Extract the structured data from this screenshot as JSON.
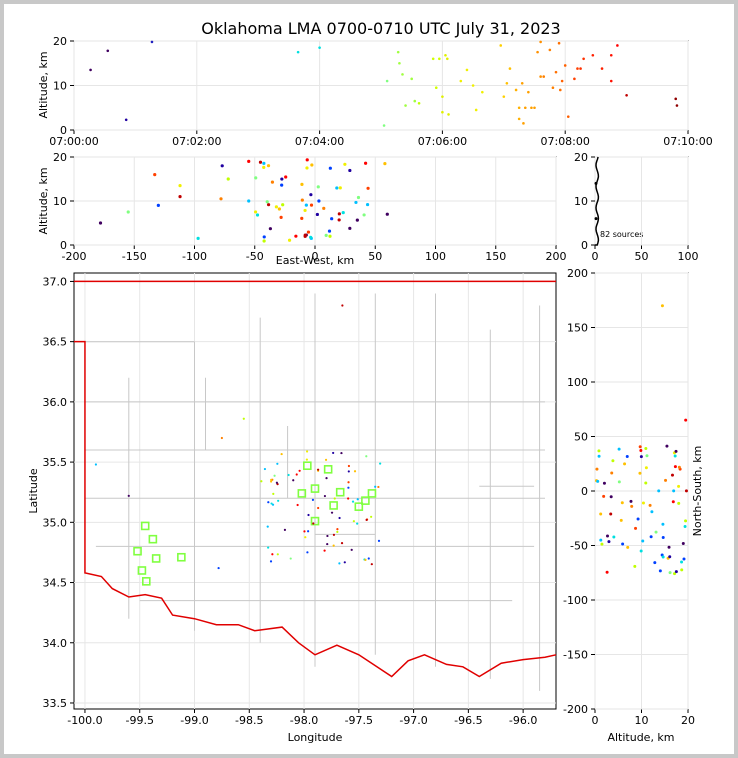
{
  "chart_data": [
    {
      "type": "scatter",
      "title": "Oklahoma LMA 0700-0710 UTC July 31, 2023",
      "ylabel": "Altitude, km",
      "xlim_labels": [
        "07:00:00",
        "07:02:00",
        "07:04:00",
        "07:06:00",
        "07:08:00",
        "07:10:00"
      ],
      "ylim": [
        0,
        20
      ],
      "yticks": [
        0,
        10,
        20
      ],
      "points": [
        {
          "t": 0.27,
          "alt": 13.5,
          "c": "#400060"
        },
        {
          "t": 0.55,
          "alt": 17.8,
          "c": "#400060"
        },
        {
          "t": 0.85,
          "alt": 2.3,
          "c": "#2000a0"
        },
        {
          "t": 1.27,
          "alt": 19.8,
          "c": "#2020c0"
        },
        {
          "t": 3.65,
          "alt": 17.5,
          "c": "#00e0e0"
        },
        {
          "t": 4.0,
          "alt": 18.5,
          "c": "#00e0e0"
        },
        {
          "t": 5.05,
          "alt": 1.0,
          "c": "#80ff80"
        },
        {
          "t": 5.1,
          "alt": 11.0,
          "c": "#80ff80"
        },
        {
          "t": 5.28,
          "alt": 17.5,
          "c": "#a0ff40"
        },
        {
          "t": 5.3,
          "alt": 15.0,
          "c": "#a0ff40"
        },
        {
          "t": 5.35,
          "alt": 12.5,
          "c": "#a0ff40"
        },
        {
          "t": 5.4,
          "alt": 5.5,
          "c": "#a0ff40"
        },
        {
          "t": 5.5,
          "alt": 11.5,
          "c": "#a0ff40"
        },
        {
          "t": 5.55,
          "alt": 6.5,
          "c": "#a0ff40"
        },
        {
          "t": 5.62,
          "alt": 6.0,
          "c": "#c0ff00"
        },
        {
          "t": 5.85,
          "alt": 16.0,
          "c": "#d0ff00"
        },
        {
          "t": 5.9,
          "alt": 9.5,
          "c": "#d0ff00"
        },
        {
          "t": 5.95,
          "alt": 16.0,
          "c": "#d0ff00"
        },
        {
          "t": 6.0,
          "alt": 7.5,
          "c": "#e0f000"
        },
        {
          "t": 6.0,
          "alt": 4.0,
          "c": "#e0f000"
        },
        {
          "t": 6.05,
          "alt": 16.8,
          "c": "#e0f000"
        },
        {
          "t": 6.08,
          "alt": 16.0,
          "c": "#e0f000"
        },
        {
          "t": 6.1,
          "alt": 3.5,
          "c": "#e0f000"
        },
        {
          "t": 6.3,
          "alt": 11.0,
          "c": "#f0f000"
        },
        {
          "t": 6.4,
          "alt": 13.5,
          "c": "#f0f000"
        },
        {
          "t": 6.5,
          "alt": 10.0,
          "c": "#f0f000"
        },
        {
          "t": 6.55,
          "alt": 4.5,
          "c": "#f0f000"
        },
        {
          "t": 6.65,
          "alt": 8.5,
          "c": "#f0f000"
        },
        {
          "t": 6.95,
          "alt": 19.0,
          "c": "#ffd000"
        },
        {
          "t": 7.0,
          "alt": 7.5,
          "c": "#ffd000"
        },
        {
          "t": 7.05,
          "alt": 10.5,
          "c": "#ffc000"
        },
        {
          "t": 7.1,
          "alt": 13.8,
          "c": "#ffc000"
        },
        {
          "t": 7.2,
          "alt": 9.0,
          "c": "#ffb000"
        },
        {
          "t": 7.25,
          "alt": 5.0,
          "c": "#ffb000"
        },
        {
          "t": 7.25,
          "alt": 2.5,
          "c": "#ffb000"
        },
        {
          "t": 7.3,
          "alt": 10.5,
          "c": "#ffa000"
        },
        {
          "t": 7.32,
          "alt": 1.5,
          "c": "#ffa000"
        },
        {
          "t": 7.35,
          "alt": 5.0,
          "c": "#ffa000"
        },
        {
          "t": 7.4,
          "alt": 8.5,
          "c": "#ffa000"
        },
        {
          "t": 7.45,
          "alt": 5.0,
          "c": "#ffa000"
        },
        {
          "t": 7.5,
          "alt": 5.0,
          "c": "#ffa000"
        },
        {
          "t": 7.55,
          "alt": 17.5,
          "c": "#ff9000"
        },
        {
          "t": 7.6,
          "alt": 19.8,
          "c": "#ff9000"
        },
        {
          "t": 7.6,
          "alt": 12.0,
          "c": "#ff9000"
        },
        {
          "t": 7.65,
          "alt": 12.0,
          "c": "#ff8000"
        },
        {
          "t": 7.75,
          "alt": 18.0,
          "c": "#ff8000"
        },
        {
          "t": 7.8,
          "alt": 9.5,
          "c": "#ff8000"
        },
        {
          "t": 7.85,
          "alt": 13.0,
          "c": "#ff7000"
        },
        {
          "t": 7.9,
          "alt": 19.5,
          "c": "#ff7000"
        },
        {
          "t": 7.92,
          "alt": 9.0,
          "c": "#ff7000"
        },
        {
          "t": 7.95,
          "alt": 11.0,
          "c": "#ff6000"
        },
        {
          "t": 8.0,
          "alt": 14.5,
          "c": "#ff6000"
        },
        {
          "t": 8.05,
          "alt": 3.0,
          "c": "#ff6000"
        },
        {
          "t": 8.15,
          "alt": 11.5,
          "c": "#ff4000"
        },
        {
          "t": 8.2,
          "alt": 13.8,
          "c": "#ff4000"
        },
        {
          "t": 8.25,
          "alt": 13.8,
          "c": "#ff3000"
        },
        {
          "t": 8.3,
          "alt": 16.0,
          "c": "#ff3000"
        },
        {
          "t": 8.45,
          "alt": 16.8,
          "c": "#ff2000"
        },
        {
          "t": 8.6,
          "alt": 13.8,
          "c": "#ff2000"
        },
        {
          "t": 8.75,
          "alt": 11.0,
          "c": "#ff1000"
        },
        {
          "t": 8.75,
          "alt": 16.8,
          "c": "#ff1000"
        },
        {
          "t": 8.85,
          "alt": 19.0,
          "c": "#ff0000"
        },
        {
          "t": 9.0,
          "alt": 7.8,
          "c": "#c00000"
        },
        {
          "t": 9.8,
          "alt": 7.0,
          "c": "#900000"
        },
        {
          "t": 9.82,
          "alt": 5.5,
          "c": "#900000"
        }
      ]
    },
    {
      "type": "scatter",
      "xlabel": "East-West, km",
      "ylabel": "Altitude, km",
      "xlim": [
        -200,
        200
      ],
      "xticks": [
        -200,
        -150,
        -100,
        -50,
        0,
        50,
        100,
        150,
        200
      ],
      "ylim": [
        0,
        20
      ],
      "yticks": [
        0,
        10,
        20
      ]
    },
    {
      "type": "histogram",
      "xlim": [
        0,
        100
      ],
      "xticks": [
        0,
        50,
        100
      ],
      "ylim": [
        0,
        20
      ],
      "yticks": [
        0,
        10,
        20
      ],
      "annotation": "82 sources"
    },
    {
      "type": "scatter",
      "xlabel": "Longitude",
      "ylabel": "Latitude",
      "xlim": [
        -100.1,
        -95.7
      ],
      "xticks": [
        -100.0,
        -99.5,
        -99.0,
        -98.5,
        -98.0,
        -97.5,
        -97.0,
        -96.5,
        -96.0
      ],
      "ylim": [
        33.45,
        37.07
      ],
      "yticks": [
        33.5,
        34.0,
        34.5,
        35.0,
        35.5,
        36.0,
        36.5,
        37.0
      ],
      "stations": [
        [
          -99.45,
          34.97
        ],
        [
          -99.38,
          34.86
        ],
        [
          -99.52,
          34.76
        ],
        [
          -99.35,
          34.7
        ],
        [
          -99.12,
          34.71
        ],
        [
          -99.48,
          34.6
        ],
        [
          -99.44,
          34.51
        ],
        [
          -98.02,
          35.24
        ],
        [
          -97.97,
          35.47
        ],
        [
          -97.9,
          35.28
        ],
        [
          -97.9,
          35.01
        ],
        [
          -97.78,
          35.44
        ],
        [
          -97.73,
          35.14
        ],
        [
          -97.67,
          35.25
        ],
        [
          -97.5,
          35.13
        ],
        [
          -97.44,
          35.18
        ],
        [
          -97.38,
          35.24
        ]
      ]
    },
    {
      "type": "scatter",
      "xlabel": "Altitude, km",
      "ylabel": "North-South, km",
      "xlim": [
        0,
        20
      ],
      "xticks": [
        0,
        10,
        20
      ],
      "ylim": [
        -200,
        200
      ],
      "yticks": [
        -200,
        -150,
        -100,
        -50,
        0,
        50,
        100,
        150,
        200
      ]
    }
  ],
  "labels": {
    "title": "Oklahoma LMA 0700-0710 UTC July 31, 2023",
    "ylabel_alt1": "Altitude, km",
    "ylabel_alt2": "Altitude, km",
    "xlabel_ew": "East-West, km",
    "hist_annotation": "82 sources",
    "xlabel_lon": "Longitude",
    "ylabel_lat": "Latitude",
    "xlabel_alt": "Altitude, km",
    "ylabel_ns": "North-South, km"
  },
  "colors": {
    "state_border": "#e00000",
    "county_lines": "#c8c8c8",
    "station_marker": "#80ff40",
    "frame": "#c8c8c8"
  }
}
